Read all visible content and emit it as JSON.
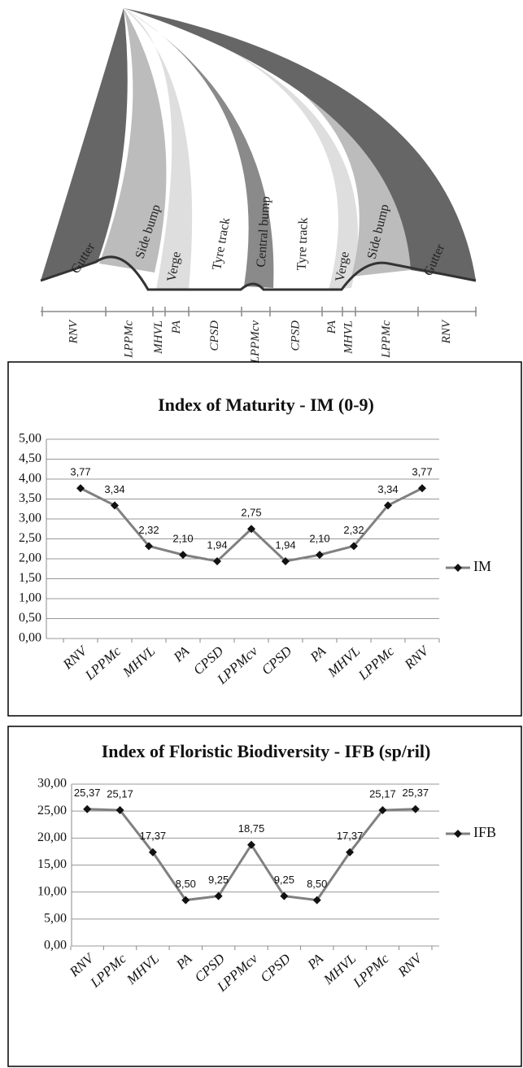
{
  "diagram": {
    "zone_labels": [
      "Gutter",
      "Side bump",
      "Verge",
      "Tyre track",
      "Central bump",
      "Tyre track",
      "Verge",
      "Side bump",
      "Gutter"
    ],
    "segments": [
      "RNV",
      "LPPMc",
      "MHVL",
      "PA",
      "CPSD",
      "LPPMcv",
      "CPSD",
      "PA",
      "MHVL",
      "LPPMc",
      "RNV"
    ]
  },
  "chart_data": [
    {
      "type": "line",
      "title": "Index of Maturity - IM (0-9)",
      "categories": [
        "RNV",
        "LPPMc",
        "MHVL",
        "PA",
        "CPSD",
        "LPPMcv",
        "CPSD",
        "PA",
        "MHVL",
        "LPPMc",
        "RNV"
      ],
      "series": [
        {
          "name": "IM",
          "color": "#808080",
          "values": [
            3.77,
            3.34,
            2.32,
            2.1,
            1.94,
            2.75,
            1.94,
            2.1,
            2.32,
            3.34,
            3.77
          ],
          "value_labels": [
            "3,77",
            "3,34",
            "2,32",
            "2,10",
            "1,94",
            "2,75",
            "1,94",
            "2,10",
            "2,32",
            "3,34",
            "3,77"
          ]
        }
      ],
      "ylim": [
        0,
        5
      ],
      "yticks": [
        {
          "value": 0,
          "label": "0,00"
        },
        {
          "value": 0.5,
          "label": "0,50"
        },
        {
          "value": 1,
          "label": "1,00"
        },
        {
          "value": 1.5,
          "label": "1,50"
        },
        {
          "value": 2,
          "label": "2,00"
        },
        {
          "value": 2.5,
          "label": "2,50"
        },
        {
          "value": 3,
          "label": "3,00"
        },
        {
          "value": 3.5,
          "label": "3,50"
        },
        {
          "value": 4,
          "label": "4,00"
        },
        {
          "value": 4.5,
          "label": "4,50"
        },
        {
          "value": 5,
          "label": "5,00"
        }
      ],
      "grid": true,
      "legend": "right"
    },
    {
      "type": "line",
      "title": "Index of Floristic Biodiversity - IFB (sp/ril)",
      "categories": [
        "RNV",
        "LPPMc",
        "MHVL",
        "PA",
        "CPSD",
        "LPPMcv",
        "CPSD",
        "PA",
        "MHVL",
        "LPPMc",
        "RNV"
      ],
      "series": [
        {
          "name": "IFB",
          "color": "#808080",
          "values": [
            25.37,
            25.17,
            17.37,
            8.5,
            9.25,
            18.75,
            9.25,
            8.5,
            17.37,
            25.17,
            25.37
          ],
          "value_labels": [
            "25,37",
            "25,17",
            "17,37",
            "8,50",
            "9,25",
            "18,75",
            "9,25",
            "8,50",
            "17,37",
            "25,17",
            "25,37"
          ]
        }
      ],
      "ylim": [
        0,
        30
      ],
      "yticks": [
        {
          "value": 0,
          "label": "0,00"
        },
        {
          "value": 5,
          "label": "5,00"
        },
        {
          "value": 10,
          "label": "10,00"
        },
        {
          "value": 15,
          "label": "15,00"
        },
        {
          "value": 20,
          "label": "20,00"
        },
        {
          "value": 25,
          "label": "25,00"
        },
        {
          "value": 30,
          "label": "30,00"
        }
      ],
      "grid": true,
      "legend": "right"
    }
  ]
}
